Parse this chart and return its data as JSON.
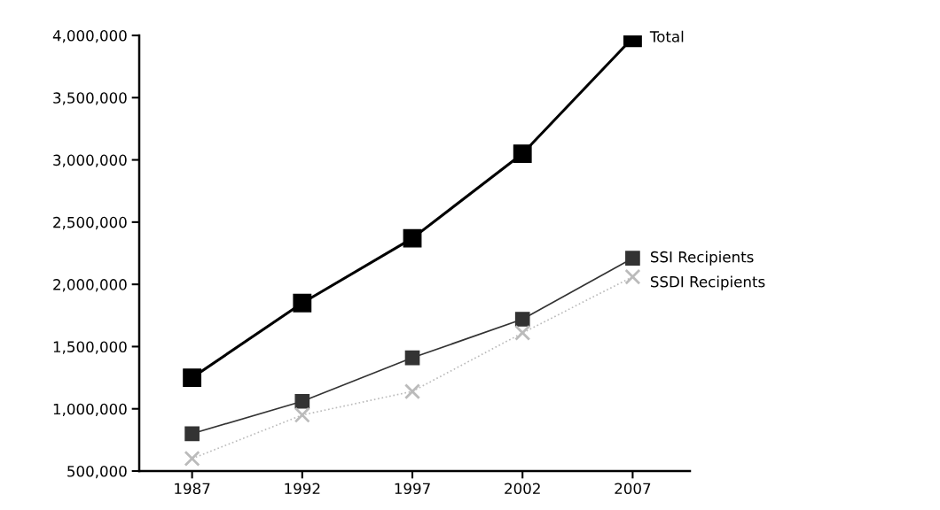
{
  "chart_data": {
    "type": "line",
    "x": [
      1987,
      1992,
      1997,
      2002,
      2007
    ],
    "series": [
      {
        "name": "Total",
        "color": "#000000",
        "marker": "square",
        "values": [
          1250000,
          1850000,
          2370000,
          3050000,
          3980000
        ]
      },
      {
        "name": "SSI Recipients",
        "color": "#333333",
        "marker": "square",
        "values": [
          800000,
          1060000,
          1410000,
          1720000,
          2210000
        ]
      },
      {
        "name": "SSDI Recipients",
        "color": "#bbbbbb",
        "marker": "cross",
        "line_style": "dotted",
        "values": [
          600000,
          950000,
          1140000,
          1610000,
          2060000
        ]
      }
    ],
    "xlim": [
      1984.6,
      2009.6
    ],
    "xticks": [
      1987,
      1992,
      1997,
      2002,
      2007
    ],
    "ylim": [
      500000,
      4000000
    ],
    "yticks": [
      {
        "value": 500000,
        "label": "500,000"
      },
      {
        "value": 1000000,
        "label": "1,000,000"
      },
      {
        "value": 1500000,
        "label": "1,500,000"
      },
      {
        "value": 2000000,
        "label": "2,000,000"
      },
      {
        "value": 2500000,
        "label": "2,500,000"
      },
      {
        "value": 3000000,
        "label": "3,000,000"
      },
      {
        "value": 3500000,
        "label": "3,500,000"
      },
      {
        "value": 4000000,
        "label": "4,000,000"
      }
    ],
    "grid": false,
    "legend": false
  }
}
